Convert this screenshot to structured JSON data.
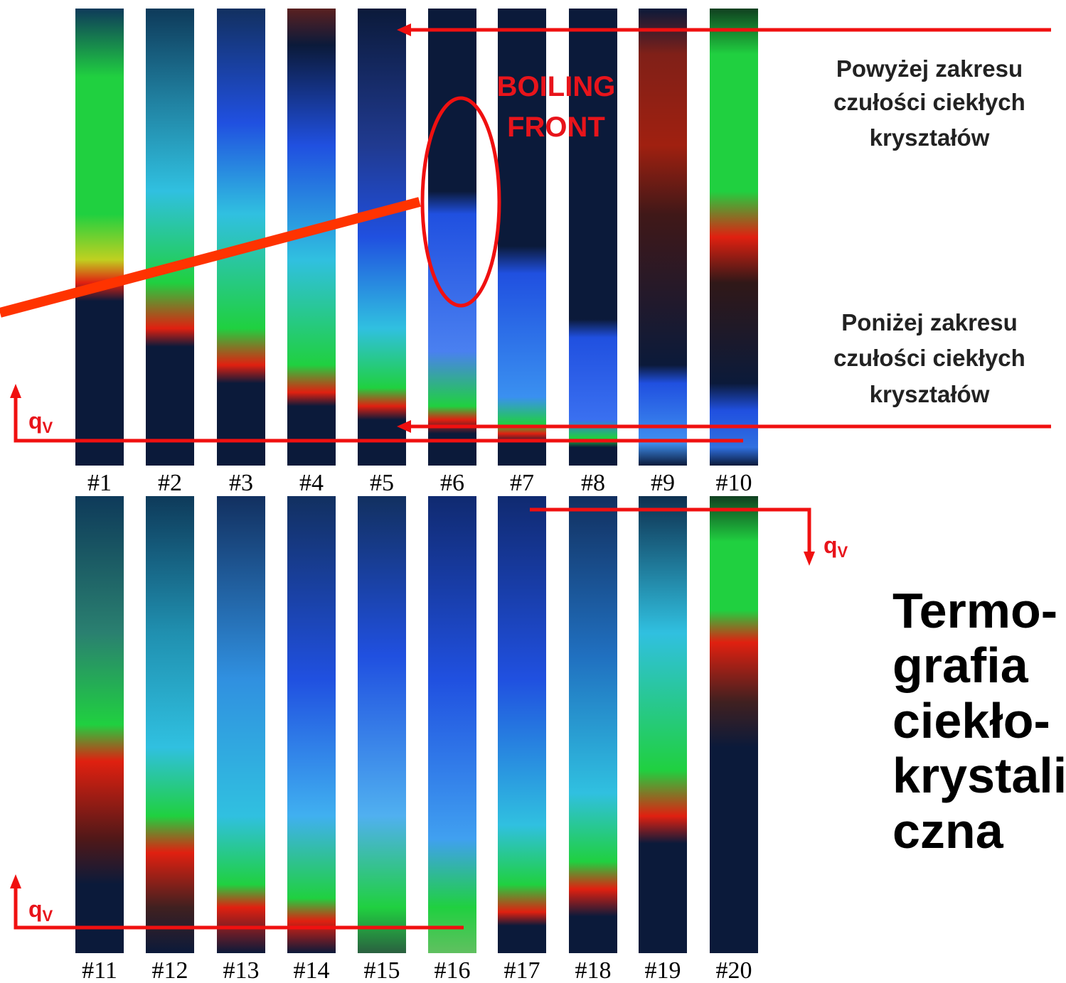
{
  "top_labels": [
    "#1",
    "#2",
    "#3",
    "#4",
    "#5",
    "#6",
    "#7",
    "#8",
    "#9",
    "#10"
  ],
  "bottom_labels": [
    "#11",
    "#12",
    "#13",
    "#14",
    "#15",
    "#16",
    "#17",
    "#18",
    "#19",
    "#20"
  ],
  "boiling_front": [
    "BOILING",
    "FRONT"
  ],
  "above_range": [
    "Powyżej zakresu",
    "czułości ciekłych",
    "kryształów"
  ],
  "below_range": [
    "Poniżej zakresu",
    "czułości ciekłych",
    "kryształów"
  ],
  "flow_label": {
    "main": "q",
    "sub": "V"
  },
  "title": [
    "Termo-",
    "grafia",
    "ciekło-",
    "krystali",
    "czna"
  ]
}
